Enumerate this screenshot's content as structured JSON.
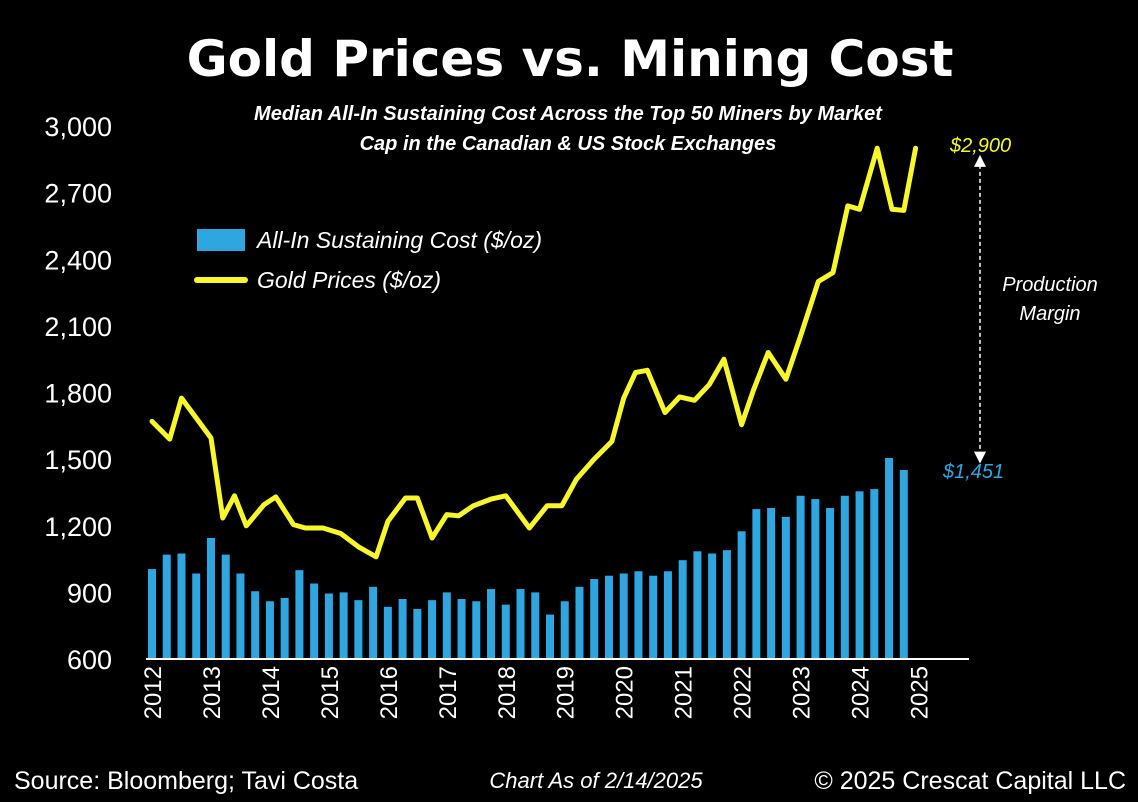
{
  "chart_data": {
    "type": "bar",
    "title": "Gold Prices vs. Mining Cost",
    "subtitle_line1": "Median All-In Sustaining Cost Across the Top 50 Miners by Market",
    "subtitle_line2": "Cap in the Canadian & US Stock Exchanges",
    "ylim": [
      600,
      3000
    ],
    "yticks": [
      "3,000",
      "2,700",
      "2,400",
      "2,100",
      "1,800",
      "1,500",
      "1,200",
      "900",
      "600"
    ],
    "ytick_values": [
      3000,
      2700,
      2400,
      2100,
      1800,
      1500,
      1200,
      900,
      600
    ],
    "xlim": [
      2012,
      2025.5
    ],
    "xticks": [
      "2012",
      "2013",
      "2014",
      "2015",
      "2016",
      "2017",
      "2018",
      "2019",
      "2020",
      "2021",
      "2022",
      "2023",
      "2024",
      "2025"
    ],
    "xtick_values": [
      2012,
      2013,
      2014,
      2015,
      2016,
      2017,
      2018,
      2019,
      2020,
      2021,
      2022,
      2023,
      2024,
      2025
    ],
    "grid": false,
    "legend_position": "upper-left",
    "series": [
      {
        "name": "All-In Sustaining Cost ($/oz)",
        "type": "bar",
        "color": "#2fa6e0",
        "x_start": 2012,
        "x_step": 0.25,
        "values": [
          1005,
          1070,
          1075,
          985,
          1145,
          1070,
          985,
          905,
          860,
          875,
          1000,
          940,
          895,
          900,
          865,
          925,
          835,
          870,
          825,
          865,
          900,
          870,
          860,
          915,
          845,
          915,
          900,
          800,
          860,
          925,
          960,
          975,
          985,
          995,
          975,
          995,
          1045,
          1085,
          1075,
          1090,
          1175,
          1275,
          1280,
          1240,
          1335,
          1320,
          1280,
          1335,
          1355,
          1365,
          1505,
          1451
        ]
      },
      {
        "name": "Gold Prices ($/oz)",
        "type": "line",
        "color": "#f7f72a",
        "x": [
          2012.0,
          2012.3,
          2012.5,
          2013.0,
          2013.2,
          2013.4,
          2013.6,
          2013.9,
          2014.1,
          2014.4,
          2014.6,
          2014.9,
          2015.2,
          2015.5,
          2015.8,
          2016.0,
          2016.3,
          2016.5,
          2016.75,
          2017.0,
          2017.2,
          2017.45,
          2017.75,
          2018.0,
          2018.4,
          2018.7,
          2018.95,
          2019.2,
          2019.5,
          2019.8,
          2020.0,
          2020.2,
          2020.4,
          2020.7,
          2020.95,
          2021.2,
          2021.45,
          2021.7,
          2022.0,
          2022.2,
          2022.45,
          2022.75,
          2023.0,
          2023.3,
          2023.55,
          2023.8,
          2024.0,
          2024.3,
          2024.55,
          2024.75,
          2024.95
        ],
        "y": [
          1670,
          1590,
          1775,
          1595,
          1235,
          1335,
          1200,
          1295,
          1330,
          1205,
          1190,
          1190,
          1165,
          1105,
          1060,
          1220,
          1325,
          1325,
          1145,
          1250,
          1245,
          1290,
          1320,
          1335,
          1190,
          1290,
          1290,
          1410,
          1500,
          1580,
          1775,
          1890,
          1900,
          1710,
          1780,
          1765,
          1835,
          1950,
          1655,
          1810,
          1980,
          1860,
          2055,
          2300,
          2340,
          2640,
          2625,
          2900,
          2625,
          2620,
          2900
        ]
      }
    ],
    "annotations": {
      "gold_end_label": "$2,900",
      "cost_end_label": "$1,451",
      "margin_label_line1": "Production",
      "margin_label_line2": "Margin",
      "margin_top_value": 2870,
      "margin_bottom_value": 1480
    }
  },
  "footer": {
    "source": "Source: Bloomberg; Tavi Costa",
    "chart_date": "Chart As of 2/14/2025",
    "copyright": "© 2025 Crescat Capital LLC"
  },
  "colors": {
    "background": "#000000",
    "bars": "#2fa6e0",
    "gold_line": "#f7f72a",
    "text": "#ffffff"
  }
}
